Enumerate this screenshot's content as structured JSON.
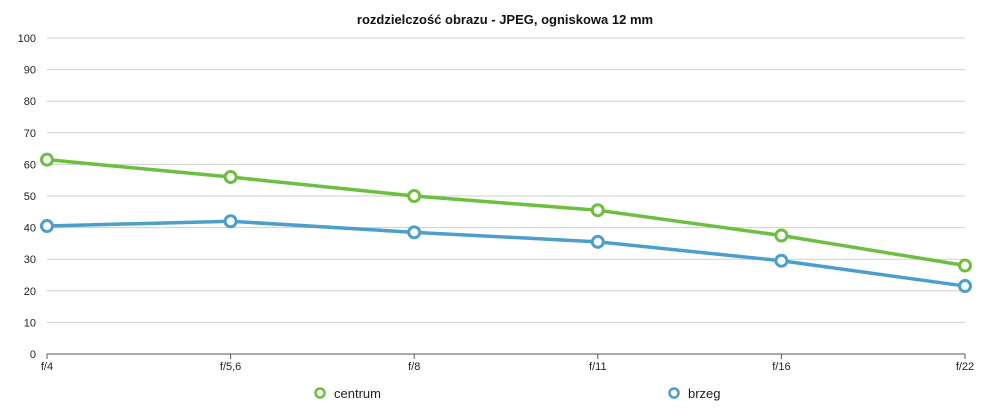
{
  "chart_data": {
    "type": "line",
    "title": "rozdzielczość obrazu - JPEG, ogniskowa 12 mm",
    "xlabel": "",
    "ylabel": "",
    "categories": [
      "f/4",
      "f/5,6",
      "f/8",
      "f/11",
      "f/16",
      "f/22"
    ],
    "ylim": [
      0,
      100
    ],
    "yticks": [
      0,
      10,
      20,
      30,
      40,
      50,
      60,
      70,
      80,
      90,
      100
    ],
    "grid": true,
    "legend_position": "bottom",
    "series": [
      {
        "name": "centrum",
        "color": "#6cbf3f",
        "values": [
          61.5,
          56,
          50,
          45.5,
          37.5,
          28
        ]
      },
      {
        "name": "brzeg",
        "color": "#4b9fca",
        "values": [
          40.5,
          42,
          38.5,
          35.5,
          29.5,
          21.5
        ]
      }
    ]
  }
}
